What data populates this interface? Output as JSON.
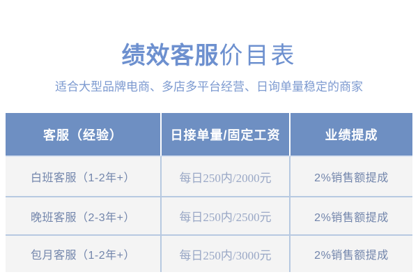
{
  "title": {
    "bold_part": "绩效客服",
    "regular_part": "价目表"
  },
  "subtitle": "适合大型品牌电商、多店多平台经营、日询单量稳定的商家",
  "table": {
    "headers": [
      "客服（经验）",
      "日接单量/固定工资",
      "业绩提成"
    ],
    "rows": [
      [
        "白班客服（1-2年+）",
        "每日250内/2000元",
        "2%销售额提成"
      ],
      [
        "晚班客服（2-3年+）",
        "每日250内/2500元",
        "2%销售额提成"
      ],
      [
        "包月客服（1-2年+）",
        "每日250内/3000元",
        "2%销售额提成"
      ]
    ]
  },
  "colors": {
    "title_blue": "#6d90cf",
    "subtitle_blue": "#7d9ad0",
    "header_bg": "#6e8fc2",
    "header_text": "#ffffff",
    "row_bg": "#f4f4f4",
    "divider_blue": "#b7c9e1",
    "side_cell_text": "#7285ab",
    "mid_cell_text": "#9aa8c6"
  }
}
